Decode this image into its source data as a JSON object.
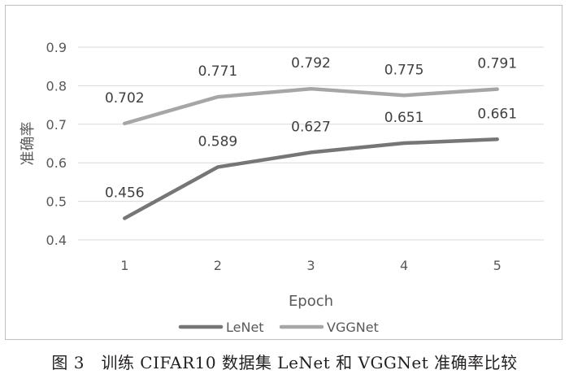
{
  "caption": "图 3　训练 CIFAR10 数据集 LeNet 和 VGGNet 准确率比较",
  "chart_data": {
    "type": "line",
    "title": "",
    "xlabel": "Epoch",
    "ylabel": "准确率",
    "categories": [
      "1",
      "2",
      "3",
      "4",
      "5"
    ],
    "ylim": [
      0.4,
      0.9
    ],
    "yticks": [
      "0.4",
      "0.5",
      "0.6",
      "0.7",
      "0.8",
      "0.9"
    ],
    "grid": true,
    "legend": "bottom",
    "series": [
      {
        "name": "LeNet",
        "values": [
          0.456,
          0.589,
          0.627,
          0.651,
          0.661
        ],
        "labels": [
          "0.456",
          "0.589",
          "0.627",
          "0.651",
          "0.661"
        ],
        "color": "#767676"
      },
      {
        "name": "VGGNet",
        "values": [
          0.702,
          0.771,
          0.792,
          0.775,
          0.791
        ],
        "labels": [
          "0.702",
          "0.771",
          "0.792",
          "0.775",
          "0.791"
        ],
        "color": "#a6a6a6"
      }
    ]
  }
}
